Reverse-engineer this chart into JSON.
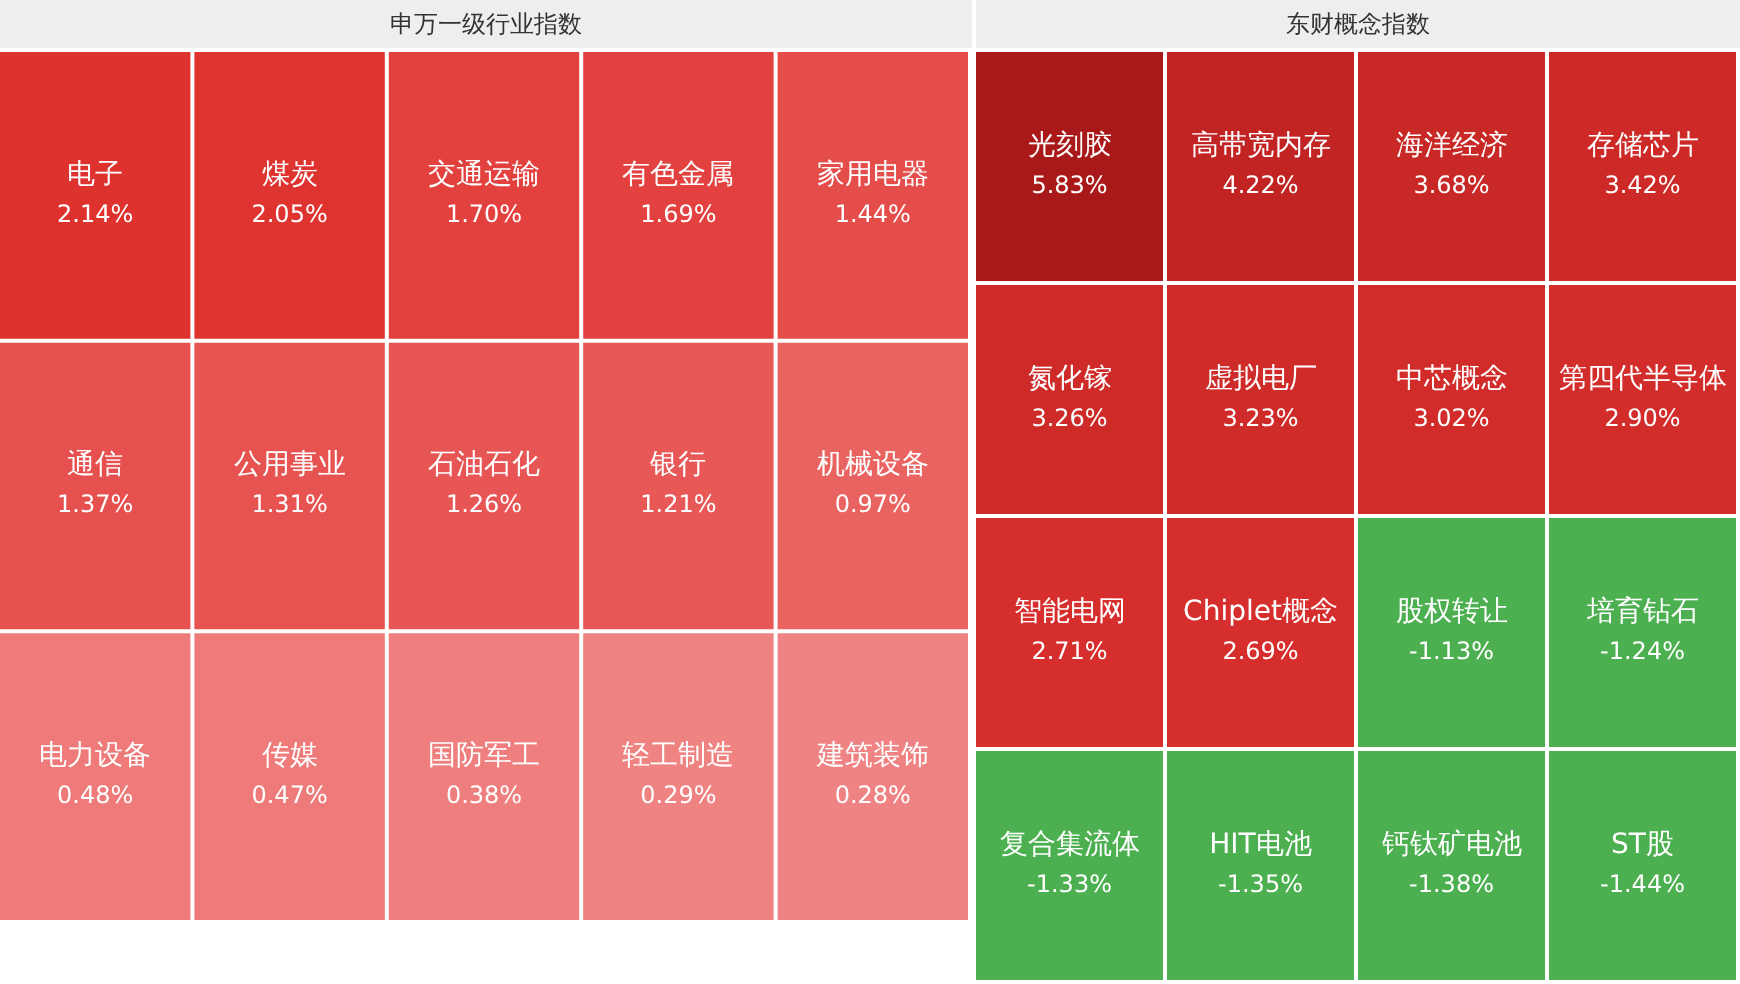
{
  "chart_data": [
    {
      "type": "other",
      "title": "申万一级行业指数",
      "categories": [
        "电子",
        "煤炭",
        "交通运输",
        "有色金属",
        "家用电器",
        "通信",
        "公用事业",
        "石油石化",
        "银行",
        "机械设备",
        "电力设备",
        "传媒",
        "国防军工",
        "轻工制造",
        "建筑装饰"
      ],
      "values": [
        2.14,
        2.05,
        1.7,
        1.69,
        1.44,
        1.37,
        1.31,
        1.26,
        1.21,
        0.97,
        0.48,
        0.47,
        0.38,
        0.29,
        0.28
      ],
      "value_labels": [
        "2.14%",
        "2.05%",
        "1.70%",
        "1.69%",
        "1.44%",
        "1.37%",
        "1.31%",
        "1.26%",
        "1.21%",
        "0.97%",
        "0.48%",
        "0.47%",
        "0.38%",
        "0.29%",
        "0.28%"
      ]
    },
    {
      "type": "other",
      "title": "东财概念指数",
      "categories": [
        "光刻胶",
        "高带宽内存",
        "海洋经济",
        "存储芯片",
        "氮化镓",
        "虚拟电厂",
        "中芯概念",
        "第四代半导体",
        "智能电网",
        "Chiplet概念",
        "股权转让",
        "培育钻石",
        "复合集流体",
        "HIT电池",
        "钙钛矿电池",
        "ST股"
      ],
      "values": [
        5.83,
        4.22,
        3.68,
        3.42,
        3.26,
        3.23,
        3.02,
        2.9,
        2.71,
        2.69,
        -1.13,
        -1.24,
        -1.33,
        -1.35,
        -1.38,
        -1.44
      ],
      "value_labels": [
        "5.83%",
        "4.22%",
        "3.68%",
        "3.42%",
        "3.26%",
        "3.23%",
        "3.02%",
        "2.90%",
        "2.71%",
        "2.69%",
        "-1.13%",
        "-1.24%",
        "-1.33%",
        "-1.35%",
        "-1.38%",
        "-1.44%"
      ]
    }
  ]
}
